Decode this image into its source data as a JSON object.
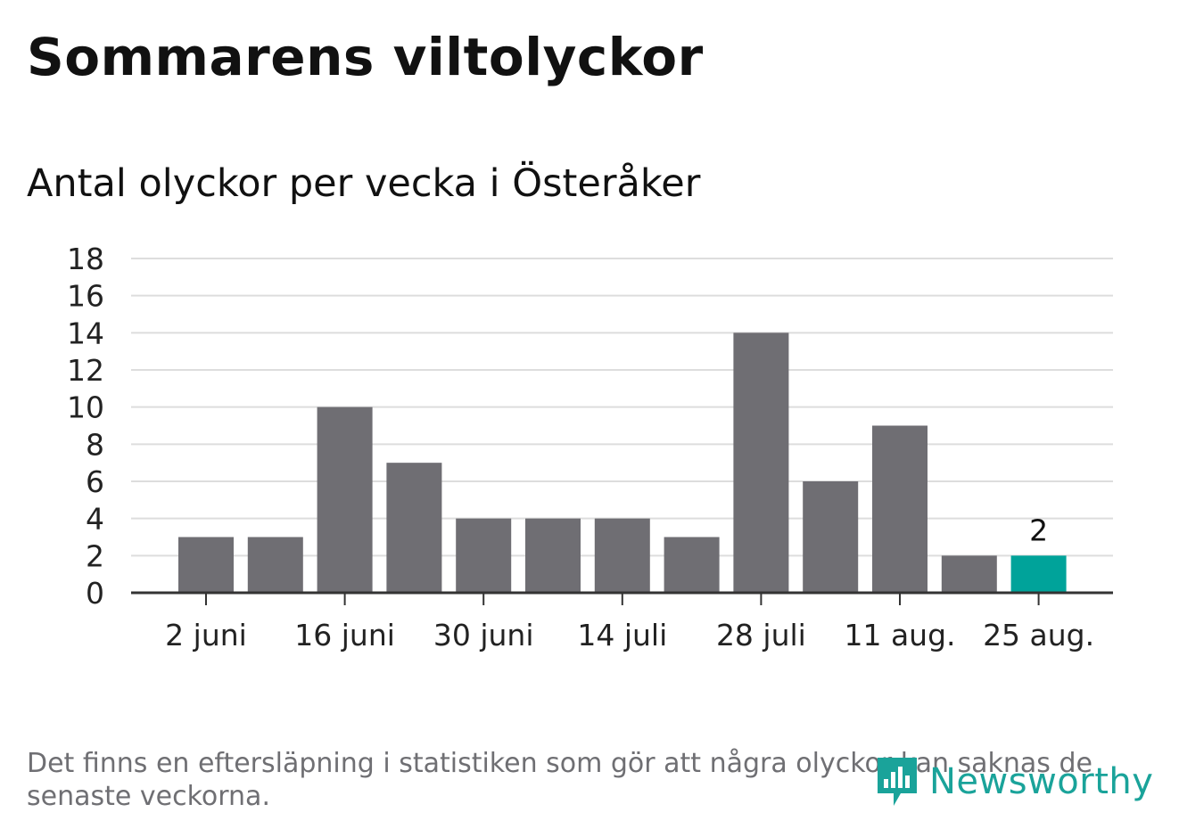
{
  "title": "Sommarens viltolyckor",
  "subtitle": "Antal olyckor per vecka i Österåker",
  "footnote": "Det finns en eftersläpning i statistiken som gör att några olyckor kan saknas de senaste veckorna.",
  "logo": {
    "text": "Newsworthy",
    "icon": "newsworthy-logo-icon",
    "color": "#1aa39a"
  },
  "colors": {
    "bar": "#6f6e73",
    "highlight": "#00a39a",
    "grid": "#dddddd",
    "axis": "#333333"
  },
  "chart_data": {
    "type": "bar",
    "categories": [
      "2 juni",
      "",
      "16 juni",
      "",
      "30 juni",
      "",
      "14 juli",
      "",
      "28 juli",
      "",
      "11 aug.",
      "",
      "25 aug."
    ],
    "values": [
      3,
      3,
      10,
      7,
      4,
      4,
      4,
      3,
      14,
      6,
      9,
      2,
      2
    ],
    "highlight_index": 12,
    "highlight_label": "2",
    "ylim": [
      0,
      18
    ],
    "yticks": [
      0,
      2,
      4,
      6,
      8,
      10,
      12,
      14,
      16,
      18
    ],
    "xlabel": "",
    "ylabel": "",
    "grid": true
  }
}
